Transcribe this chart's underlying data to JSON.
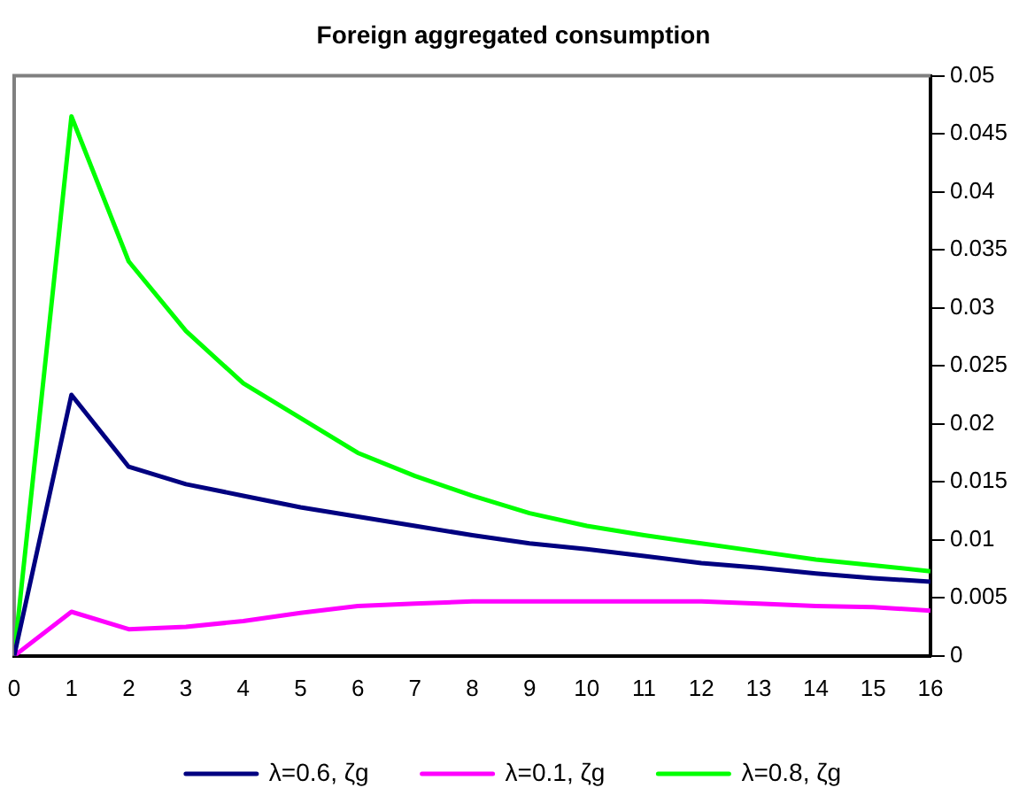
{
  "chart_data": {
    "type": "line",
    "title": "Foreign aggregated consumption",
    "x": [
      0,
      1,
      2,
      3,
      4,
      5,
      6,
      7,
      8,
      9,
      10,
      11,
      12,
      13,
      14,
      15,
      16
    ],
    "xlim": [
      0,
      16
    ],
    "xticks": [
      0,
      1,
      2,
      3,
      4,
      5,
      6,
      7,
      8,
      9,
      10,
      11,
      12,
      13,
      14,
      15,
      16
    ],
    "ylim": [
      0,
      0.05
    ],
    "yticks": [
      0,
      0.005,
      0.01,
      0.015,
      0.02,
      0.025,
      0.03,
      0.035,
      0.04,
      0.045,
      0.05
    ],
    "grid": false,
    "legend": "bottom",
    "marker": "none",
    "line_style": "solid",
    "series": [
      {
        "name": "λ=0.6, ζg",
        "color": "#000080",
        "values": [
          0,
          0.0225,
          0.0163,
          0.0148,
          0.0138,
          0.0128,
          0.012,
          0.0112,
          0.0104,
          0.0097,
          0.0092,
          0.0086,
          0.008,
          0.0076,
          0.0071,
          0.0067,
          0.0064
        ]
      },
      {
        "name": "λ=0.1, ζg",
        "color": "#ff00ff",
        "values": [
          0,
          0.0038,
          0.0023,
          0.0025,
          0.003,
          0.0037,
          0.0043,
          0.0045,
          0.0047,
          0.0047,
          0.0047,
          0.0047,
          0.0047,
          0.0045,
          0.0043,
          0.0042,
          0.0039
        ]
      },
      {
        "name": "λ=0.8, ζg",
        "color": "#00ff00",
        "values": [
          0,
          0.0465,
          0.034,
          0.028,
          0.0235,
          0.0205,
          0.0175,
          0.0155,
          0.0138,
          0.0123,
          0.0112,
          0.0104,
          0.0097,
          0.009,
          0.0083,
          0.0078,
          0.0073
        ]
      }
    ]
  }
}
